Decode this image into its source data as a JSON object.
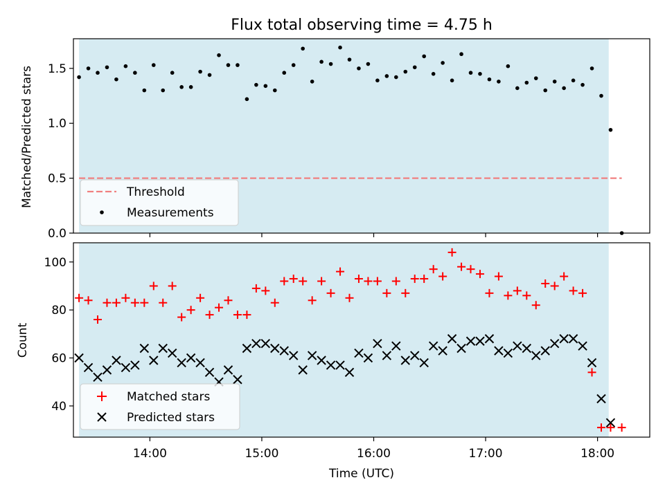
{
  "figure": {
    "title": "Flux total observing time = 4.75 h",
    "shade_color": "#add8e6"
  },
  "chart_data": [
    {
      "type": "scatter",
      "title": "Flux total observing time = 4.75 h",
      "xlabel": "",
      "ylabel": "Matched/Predicted stars",
      "xlim": [
        "13:19",
        "18:28"
      ],
      "ylim": [
        0,
        1.77
      ],
      "yticks": [
        "0.0",
        "0.5",
        "1.0",
        "1.5"
      ],
      "shaded_span": [
        "13:22",
        "18:06"
      ],
      "threshold": {
        "name": "Threshold",
        "value": 0.5,
        "x_range": [
          "13:22",
          "18:13"
        ],
        "color": "#f08080",
        "style": "dashed"
      },
      "series": [
        {
          "name": "Measurements",
          "color": "#000000",
          "marker": "dot",
          "x": [
            "13:22",
            "13:27",
            "13:32",
            "13:37",
            "13:42",
            "13:47",
            "13:52",
            "13:57",
            "14:02",
            "14:07",
            "14:12",
            "14:17",
            "14:22",
            "14:27",
            "14:32",
            "14:37",
            "14:42",
            "14:47",
            "14:52",
            "14:57",
            "15:02",
            "15:07",
            "15:12",
            "15:17",
            "15:22",
            "15:27",
            "15:32",
            "15:37",
            "15:42",
            "15:47",
            "15:52",
            "15:57",
            "16:02",
            "16:07",
            "16:12",
            "16:17",
            "16:22",
            "16:27",
            "16:32",
            "16:37",
            "16:42",
            "16:47",
            "16:52",
            "16:57",
            "17:02",
            "17:07",
            "17:12",
            "17:17",
            "17:22",
            "17:27",
            "17:32",
            "17:37",
            "17:42",
            "17:47",
            "17:52",
            "17:57",
            "18:02",
            "18:07",
            "18:13"
          ],
          "y": [
            1.42,
            1.5,
            1.46,
            1.51,
            1.4,
            1.52,
            1.46,
            1.3,
            1.53,
            1.3,
            1.46,
            1.33,
            1.33,
            1.47,
            1.44,
            1.62,
            1.53,
            1.53,
            1.22,
            1.35,
            1.34,
            1.3,
            1.46,
            1.53,
            1.68,
            1.38,
            1.56,
            1.54,
            1.69,
            1.58,
            1.5,
            1.54,
            1.39,
            1.43,
            1.42,
            1.47,
            1.51,
            1.61,
            1.45,
            1.55,
            1.39,
            1.63,
            1.46,
            1.45,
            1.4,
            1.38,
            1.52,
            1.32,
            1.37,
            1.41,
            1.3,
            1.38,
            1.32,
            1.39,
            1.35,
            1.5,
            1.25,
            0.94,
            0.0
          ]
        }
      ],
      "legend": {
        "location": "lower-left",
        "entries": [
          "Threshold",
          "Measurements"
        ]
      }
    },
    {
      "type": "scatter",
      "xlabel": "Time (UTC)",
      "ylabel": "Count",
      "xlim": [
        "13:19",
        "18:28"
      ],
      "ylim": [
        27,
        108
      ],
      "yticks": [
        "40",
        "60",
        "80",
        "100"
      ],
      "xticks": [
        "14:00",
        "15:00",
        "16:00",
        "17:00",
        "18:00"
      ],
      "shaded_span": [
        "13:22",
        "18:06"
      ],
      "series": [
        {
          "name": "Matched stars",
          "color": "#ff0000",
          "marker": "plus",
          "x": [
            "13:22",
            "13:27",
            "13:32",
            "13:37",
            "13:42",
            "13:47",
            "13:52",
            "13:57",
            "14:02",
            "14:07",
            "14:12",
            "14:17",
            "14:22",
            "14:27",
            "14:32",
            "14:37",
            "14:42",
            "14:47",
            "14:52",
            "14:57",
            "15:02",
            "15:07",
            "15:12",
            "15:17",
            "15:22",
            "15:27",
            "15:32",
            "15:37",
            "15:42",
            "15:47",
            "15:52",
            "15:57",
            "16:02",
            "16:07",
            "16:12",
            "16:17",
            "16:22",
            "16:27",
            "16:32",
            "16:37",
            "16:42",
            "16:47",
            "16:52",
            "16:57",
            "17:02",
            "17:07",
            "17:12",
            "17:17",
            "17:22",
            "17:27",
            "17:32",
            "17:37",
            "17:42",
            "17:47",
            "17:52",
            "17:57",
            "18:02",
            "18:07",
            "18:13"
          ],
          "y": [
            85,
            84,
            76,
            83,
            83,
            85,
            83,
            83,
            90,
            83,
            90,
            77,
            80,
            85,
            78,
            81,
            84,
            78,
            78,
            89,
            88,
            83,
            92,
            93,
            92,
            84,
            92,
            87,
            96,
            85,
            93,
            92,
            92,
            87,
            92,
            87,
            93,
            93,
            97,
            94,
            104,
            98,
            97,
            95,
            87,
            94,
            86,
            88,
            86,
            82,
            91,
            90,
            94,
            88,
            87,
            54,
            31,
            31,
            31
          ]
        },
        {
          "name": "Predicted stars",
          "color": "#000000",
          "marker": "x",
          "x": [
            "13:22",
            "13:27",
            "13:32",
            "13:37",
            "13:42",
            "13:47",
            "13:52",
            "13:57",
            "14:02",
            "14:07",
            "14:12",
            "14:17",
            "14:22",
            "14:27",
            "14:32",
            "14:37",
            "14:42",
            "14:47",
            "14:52",
            "14:57",
            "15:02",
            "15:07",
            "15:12",
            "15:17",
            "15:22",
            "15:27",
            "15:32",
            "15:37",
            "15:42",
            "15:47",
            "15:52",
            "15:57",
            "16:02",
            "16:07",
            "16:12",
            "16:17",
            "16:22",
            "16:27",
            "16:32",
            "16:37",
            "16:42",
            "16:47",
            "16:52",
            "16:57",
            "17:02",
            "17:07",
            "17:12",
            "17:17",
            "17:22",
            "17:27",
            "17:32",
            "17:37",
            "17:42",
            "17:47",
            "17:52",
            "17:57",
            "18:02",
            "18:07"
          ],
          "y": [
            60,
            56,
            52,
            55,
            59,
            56,
            57,
            64,
            59,
            64,
            62,
            58,
            60,
            58,
            54,
            50,
            55,
            51,
            64,
            66,
            66,
            64,
            63,
            61,
            55,
            61,
            59,
            57,
            57,
            54,
            62,
            60,
            66,
            61,
            65,
            59,
            61,
            58,
            65,
            63,
            68,
            64,
            67,
            67,
            68,
            63,
            62,
            65,
            64,
            61,
            63,
            66,
            68,
            68,
            65,
            58,
            43,
            33
          ]
        }
      ],
      "legend": {
        "location": "lower-left",
        "entries": [
          "Matched stars",
          "Predicted stars"
        ]
      }
    }
  ]
}
